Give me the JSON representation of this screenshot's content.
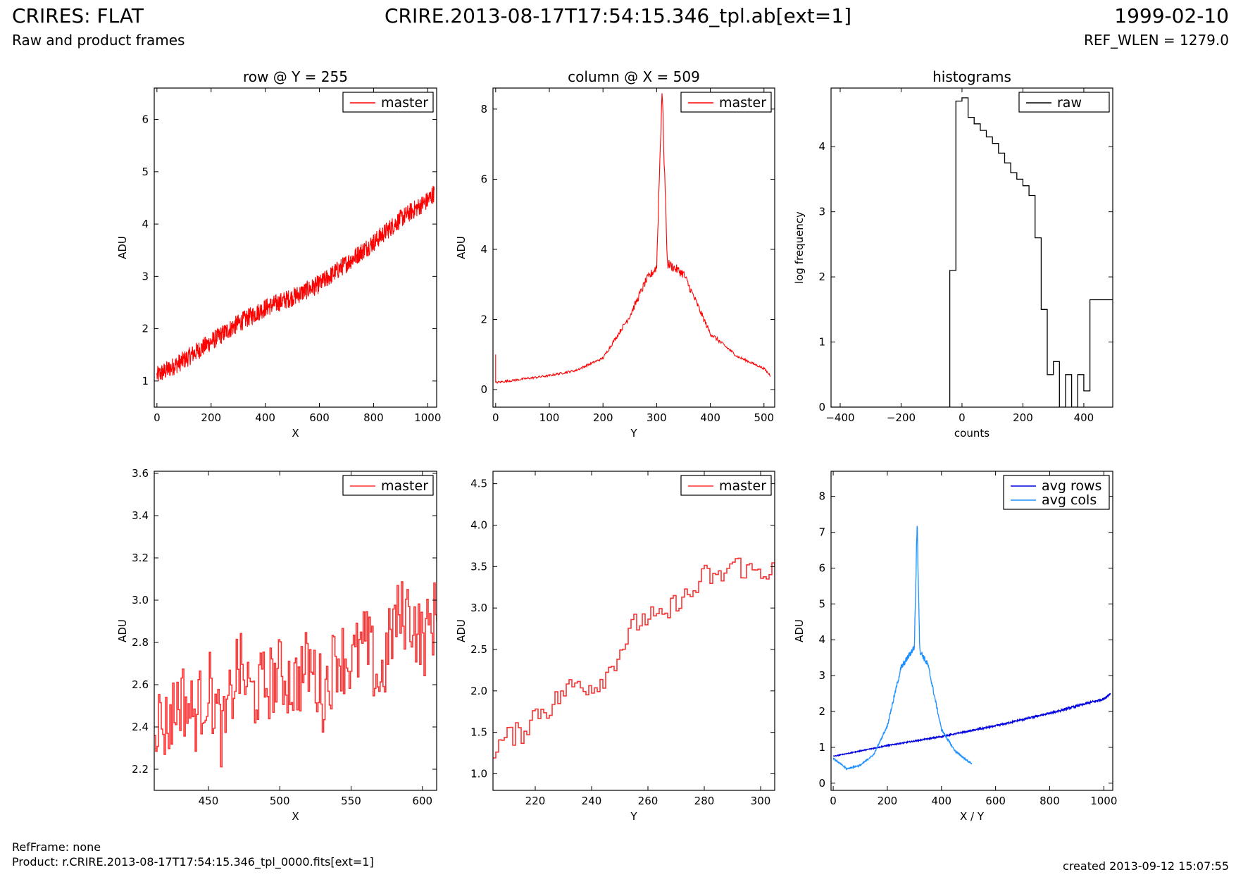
{
  "header": {
    "title": "CRIRES: FLAT",
    "subtitle": "Raw and product frames",
    "file": "CRIRE.2013-08-17T17:54:15.346_tpl.ab[ext=1]",
    "date": "1999-02-10",
    "ref_wlen": "REF_WLEN = 1279.0"
  },
  "footer": {
    "refframe": "RefFrame: none",
    "product": "Product: r.CRIRE.2013-08-17T17:54:15.346_tpl_0000.fits[ext=1]",
    "created": "created 2013-09-12 15:07:55"
  },
  "colors": {
    "master": "#ff0000",
    "master_zoom": "#ff3030",
    "raw": "#000000",
    "avg_rows": "#0000e0",
    "avg_cols": "#1e90ff"
  },
  "chart_data": [
    {
      "type": "line",
      "title": "row @ Y = 255",
      "xlabel": "X",
      "ylabel": "ADU",
      "xlim": [
        -10,
        1033
      ],
      "ylim": [
        0.5,
        6.6
      ],
      "xticks": [
        0,
        200,
        400,
        600,
        800,
        1000
      ],
      "yticks": [
        1,
        2,
        3,
        4,
        5,
        6
      ],
      "legend": "top-right",
      "series": [
        {
          "name": "master",
          "color": "#ff0000",
          "x": [
            0,
            100,
            200,
            300,
            400,
            500,
            600,
            700,
            800,
            900,
            1000,
            1024
          ],
          "y": [
            1.1,
            1.4,
            1.75,
            2.1,
            2.4,
            2.6,
            2.85,
            3.25,
            3.65,
            4.1,
            4.45,
            4.6
          ]
        }
      ]
    },
    {
      "type": "line",
      "title": "column @ X = 509",
      "xlabel": "Y",
      "ylabel": "ADU",
      "xlim": [
        -5,
        520
      ],
      "ylim": [
        -0.5,
        8.6
      ],
      "xticks": [
        0,
        100,
        200,
        300,
        400,
        500
      ],
      "yticks": [
        0,
        2,
        4,
        6,
        8
      ],
      "legend": "top-right",
      "series": [
        {
          "name": "master",
          "color": "#ff0000",
          "x": [
            0,
            25,
            50,
            100,
            150,
            200,
            250,
            280,
            300,
            310,
            320,
            350,
            400,
            450,
            500,
            512
          ],
          "y": [
            0.2,
            0.25,
            0.3,
            0.4,
            0.55,
            0.9,
            2.1,
            3.1,
            3.5,
            8.6,
            3.6,
            3.3,
            1.6,
            0.95,
            0.6,
            0.4
          ]
        }
      ]
    },
    {
      "type": "line",
      "title": "histograms",
      "xlabel": "counts",
      "ylabel": "log frequency",
      "xlim": [
        -430,
        495
      ],
      "ylim": [
        0,
        4.9
      ],
      "xticks": [
        -400,
        -200,
        0,
        200,
        400
      ],
      "xtick_labels": [
        "−400",
        "−200",
        "0",
        "200",
        "400"
      ],
      "yticks": [
        0,
        1,
        2,
        3,
        4
      ],
      "legend": "top-right",
      "series": [
        {
          "name": "raw",
          "color": "#000000",
          "x": [
            -40,
            -20,
            0,
            20,
            40,
            60,
            80,
            100,
            120,
            140,
            160,
            180,
            200,
            220,
            240,
            260,
            280,
            300,
            320,
            340,
            360,
            380,
            400,
            420,
            440,
            460,
            480
          ],
          "y": [
            2.1,
            4.7,
            4.75,
            4.45,
            4.35,
            4.25,
            4.15,
            4.05,
            3.9,
            3.75,
            3.6,
            3.5,
            3.4,
            3.25,
            2.6,
            1.5,
            0.5,
            0.7,
            0,
            0.5,
            0,
            0.5,
            0.25,
            1.65,
            1.65,
            1.65,
            1.65
          ]
        }
      ]
    },
    {
      "type": "line",
      "xlabel": "X",
      "ylabel": "ADU",
      "xlim": [
        412,
        610
      ],
      "ylim": [
        2.1,
        3.61
      ],
      "xticks": [
        450,
        500,
        550,
        600
      ],
      "yticks": [
        2.2,
        2.4,
        2.6,
        2.8,
        3.0,
        3.2,
        3.4,
        3.6
      ],
      "ytick_labels": [
        "2.2",
        "2.4",
        "2.6",
        "2.8",
        "3.0",
        "3.2",
        "3.4",
        "3.6"
      ],
      "legend": "top-right",
      "series": [
        {
          "name": "master",
          "color": "#ff3030",
          "x": [
            412,
            420,
            430,
            440,
            450,
            460,
            470,
            480,
            490,
            500,
            510,
            520,
            530,
            540,
            550,
            560,
            570,
            580,
            590,
            600,
            610
          ],
          "y": [
            2.45,
            2.4,
            2.55,
            2.45,
            2.6,
            2.35,
            2.7,
            2.55,
            2.6,
            2.65,
            2.6,
            2.7,
            2.55,
            2.75,
            2.7,
            2.8,
            2.6,
            2.9,
            2.95,
            2.8,
            2.95
          ]
        }
      ]
    },
    {
      "type": "line",
      "xlabel": "Y",
      "ylabel": "ADU",
      "xlim": [
        205,
        305
      ],
      "ylim": [
        0.8,
        4.65
      ],
      "xticks": [
        220,
        240,
        260,
        280,
        300
      ],
      "yticks": [
        1.0,
        1.5,
        2.0,
        2.5,
        3.0,
        3.5,
        4.0,
        4.5
      ],
      "ytick_labels": [
        "1.0",
        "1.5",
        "2.0",
        "2.5",
        "3.0",
        "3.5",
        "4.0",
        "4.5"
      ],
      "legend": "top-right",
      "series": [
        {
          "name": "master",
          "color": "#ff3030",
          "x": [
            205,
            210,
            215,
            220,
            225,
            230,
            235,
            240,
            245,
            250,
            255,
            260,
            265,
            270,
            275,
            280,
            285,
            290,
            295,
            300,
            305
          ],
          "y": [
            1.3,
            1.45,
            1.5,
            1.75,
            1.8,
            2.0,
            2.1,
            2.05,
            2.2,
            2.5,
            2.8,
            2.9,
            2.85,
            3.1,
            3.15,
            3.4,
            3.35,
            3.55,
            3.45,
            3.45,
            3.45
          ]
        }
      ]
    },
    {
      "type": "line",
      "xlabel": "X / Y",
      "ylabel": "ADU",
      "xlim": [
        -8,
        1033
      ],
      "ylim": [
        -0.2,
        8.7
      ],
      "xticks": [
        0,
        200,
        400,
        600,
        800,
        1000
      ],
      "yticks": [
        0,
        1,
        2,
        3,
        4,
        5,
        6,
        7,
        8
      ],
      "legend": "top-right",
      "series": [
        {
          "name": "avg rows",
          "color": "#0000e0",
          "x": [
            0,
            200,
            400,
            600,
            800,
            1000,
            1024
          ],
          "y": [
            0.75,
            1.05,
            1.3,
            1.6,
            1.95,
            2.35,
            2.5
          ]
        },
        {
          "name": "avg cols",
          "color": "#1e90ff",
          "x": [
            0,
            50,
            100,
            150,
            200,
            250,
            300,
            310,
            320,
            350,
            400,
            450,
            500,
            512
          ],
          "y": [
            0.7,
            0.4,
            0.5,
            0.8,
            1.6,
            3.2,
            3.8,
            7.3,
            3.7,
            3.3,
            1.5,
            0.9,
            0.6,
            0.55
          ]
        }
      ]
    }
  ]
}
